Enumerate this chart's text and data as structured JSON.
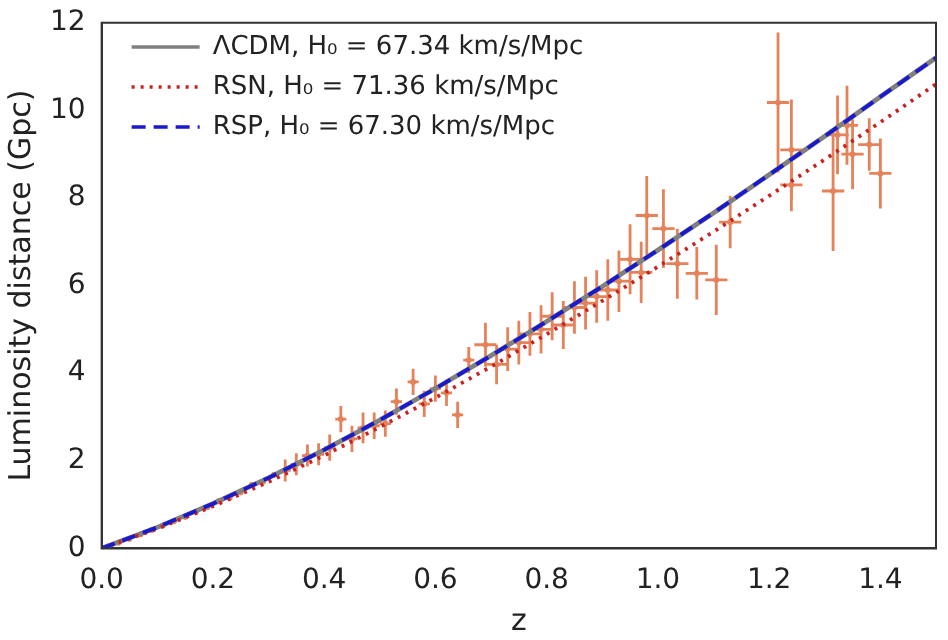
{
  "chart_data": {
    "type": "line",
    "xlabel": "z",
    "ylabel": "Luminosity distance (Gpc)",
    "xlim": [
      0,
      1.5
    ],
    "xticks": [
      {
        "value": 0,
        "label": "0.0"
      },
      {
        "value": 0.2,
        "label": "0.2"
      },
      {
        "value": 0.4,
        "label": "0.4"
      },
      {
        "value": 0.6,
        "label": "0.6"
      },
      {
        "value": 0.8,
        "label": "0.8"
      },
      {
        "value": 1,
        "label": "1.0"
      },
      {
        "value": 1.2,
        "label": "1.2"
      },
      {
        "value": 1.4,
        "label": "1.4"
      }
    ],
    "ylim": [
      0,
      12
    ],
    "yticks": [
      0,
      2,
      4,
      6,
      8,
      10,
      12
    ],
    "grid": false,
    "legend": "top left",
    "series": [
      {
        "type": "scatter",
        "color": "#e5825a",
        "marker": "circle",
        "x": [
          0.01,
          0.03,
          0.05,
          0.07,
          0.09,
          0.11,
          0.13,
          0.15,
          0.17,
          0.19,
          0.21,
          0.23,
          0.25,
          0.27,
          0.29,
          0.31,
          0.33,
          0.35,
          0.37,
          0.39,
          0.41,
          0.43,
          0.45,
          0.47,
          0.49,
          0.51,
          0.53,
          0.56,
          0.58,
          0.6,
          0.62,
          0.64,
          0.66,
          0.69,
          0.71,
          0.73,
          0.75,
          0.77,
          0.79,
          0.81,
          0.83,
          0.85,
          0.87,
          0.89,
          0.91,
          0.93,
          0.95,
          0.97,
          0.98,
          1.01,
          1.035,
          1.07,
          1.105,
          1.13,
          1.216,
          1.24,
          1.24,
          1.315,
          1.323,
          1.34,
          1.35,
          1.38,
          1.4
        ],
        "values": [
          0.04,
          0.13,
          0.22,
          0.32,
          0.42,
          0.52,
          0.62,
          0.72,
          0.84,
          0.94,
          1.08,
          1.15,
          1.28,
          1.45,
          1.52,
          1.68,
          1.78,
          1.92,
          2.12,
          2.15,
          2.3,
          2.95,
          2.5,
          2.75,
          2.8,
          2.85,
          3.35,
          3.8,
          3.3,
          3.65,
          3.55,
          3.05,
          4.3,
          4.65,
          4.2,
          4.55,
          4.7,
          4.9,
          5.0,
          5.3,
          5.1,
          5.5,
          5.6,
          5.75,
          5.9,
          6.1,
          6.6,
          6.3,
          7.6,
          7.3,
          6.5,
          6.28,
          6.13,
          7.45,
          10.18,
          9.1,
          8.3,
          8.16,
          9.44,
          9.66,
          9.0,
          9.22,
          8.56
        ],
        "errors": [
          null,
          null,
          null,
          null,
          null,
          null,
          null,
          null,
          null,
          null,
          null,
          null,
          null,
          null,
          null,
          null,
          0.25,
          0.25,
          0.25,
          0.25,
          0.3,
          0.3,
          0.3,
          0.35,
          0.3,
          0.3,
          0.3,
          0.3,
          0.3,
          0.3,
          0.3,
          0.3,
          0.3,
          0.5,
          0.45,
          0.5,
          0.5,
          0.5,
          0.55,
          0.55,
          0.55,
          0.6,
          0.6,
          0.6,
          0.7,
          0.7,
          0.8,
          0.7,
          0.9,
          0.9,
          0.8,
          0.6,
          0.8,
          0.6,
          1.6,
          1.15,
          0.6,
          1.37,
          0.9,
          0.9,
          0.8,
          0.6,
          0.8
        ],
        "xerrors": [
          null,
          null,
          null,
          null,
          null,
          null,
          null,
          null,
          null,
          null,
          null,
          null,
          null,
          null,
          null,
          null,
          0.01,
          0.01,
          0.01,
          0.01,
          0.01,
          0.01,
          0.01,
          0.01,
          0.01,
          0.01,
          0.01,
          0.01,
          0.01,
          0.01,
          0.01,
          0.01,
          0.01,
          0.02,
          0.02,
          0.02,
          0.02,
          0.02,
          0.02,
          0.02,
          0.02,
          0.02,
          0.02,
          0.02,
          0.02,
          0.02,
          0.02,
          0.02,
          0.02,
          0.02,
          0.02,
          0.02,
          0.02,
          0.02,
          0.02,
          0.02,
          0.02,
          0.02,
          0.02,
          0.02,
          0.02,
          0.02,
          0.02
        ]
      },
      {
        "name": "ΛCDM, H₀ = 67.34 km/s/Mpc",
        "color": "#808080",
        "line_style": "solid",
        "x": [
          0,
          0.1,
          0.2,
          0.3,
          0.4,
          0.5,
          0.6,
          0.7,
          0.8,
          0.9,
          1.0,
          1.1,
          1.2,
          1.3,
          1.4,
          1.5
        ],
        "values": [
          0,
          0.48,
          1.02,
          1.61,
          2.25,
          2.93,
          3.65,
          4.4,
          5.18,
          5.98,
          6.81,
          7.66,
          8.53,
          9.41,
          10.31,
          11.2
        ]
      },
      {
        "name": "RSN, H₀ = 71.36 km/s/Mpc",
        "color": "#cc2020",
        "line_style": "dotted",
        "x": [
          0,
          0.1,
          0.2,
          0.3,
          0.4,
          0.5,
          0.6,
          0.7,
          0.8,
          0.9,
          1.0,
          1.1,
          1.2,
          1.3,
          1.4,
          1.5
        ],
        "values": [
          0,
          0.45,
          0.96,
          1.52,
          2.12,
          2.77,
          3.44,
          4.15,
          4.89,
          5.65,
          6.43,
          7.23,
          8.05,
          8.88,
          9.73,
          10.6
        ]
      },
      {
        "name": "RSP, H₀ = 67.30 km/s/Mpc",
        "color": "#1a1acc",
        "line_style": "dashed",
        "x": [
          0,
          0.1,
          0.2,
          0.3,
          0.4,
          0.5,
          0.6,
          0.7,
          0.8,
          0.9,
          1.0,
          1.1,
          1.2,
          1.3,
          1.4,
          1.5
        ],
        "values": [
          0,
          0.48,
          1.02,
          1.61,
          2.25,
          2.93,
          3.65,
          4.4,
          5.18,
          5.98,
          6.81,
          7.66,
          8.53,
          9.41,
          10.31,
          11.2
        ]
      }
    ]
  }
}
